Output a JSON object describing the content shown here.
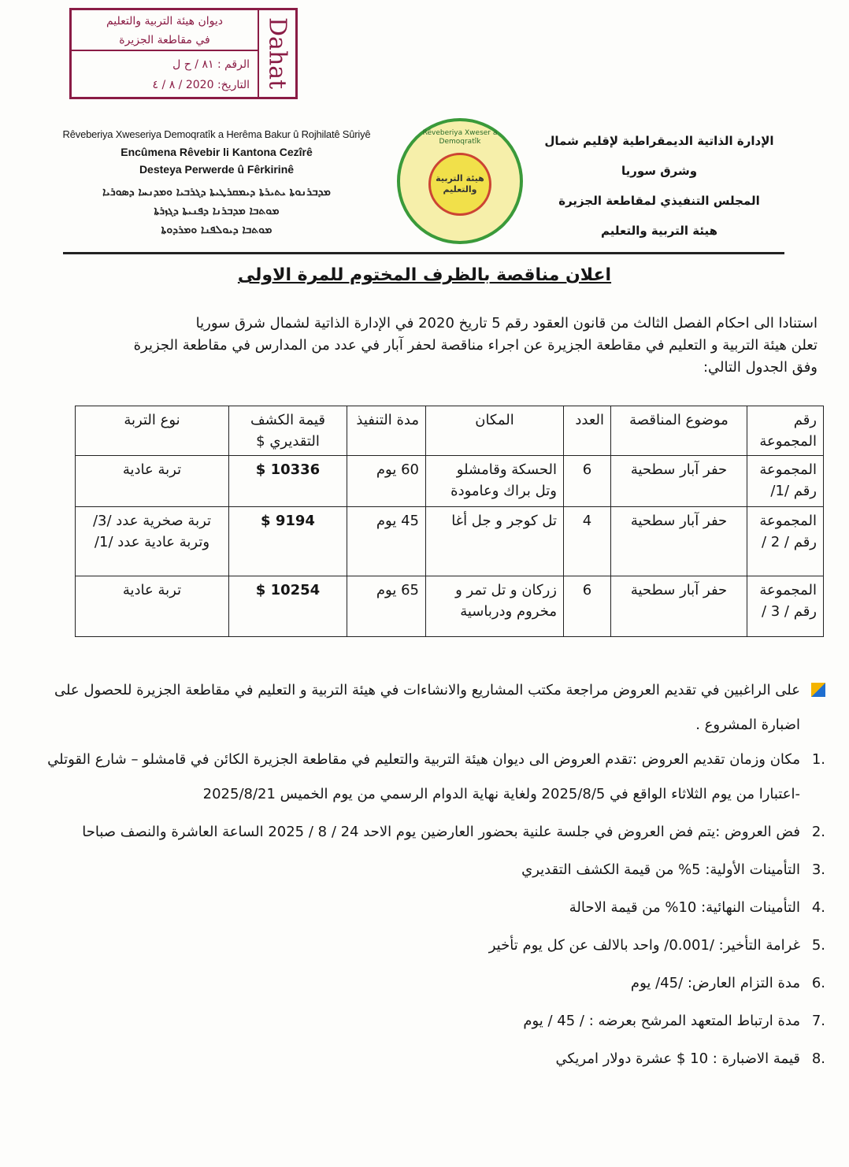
{
  "stamp": {
    "line1": "ديوان هيئة التربية والتعليم",
    "line2": "في مقاطعة الجزيرة",
    "number_label": "الرقم :",
    "number_value": "٨١ / ح ل",
    "date_label": "التاريخ:",
    "date_value": "2020 / ٨ / ٤",
    "side": "Dahat",
    "color": "#8a1c45"
  },
  "header_kurdish": [
    "Rêveberiya Xweseriya Demoqratîk a Herêma Bakur û Rojhilatê Sûriyê",
    "Encûmena Rêvebir li Kantona Cezîrê",
    "Desteya Perwerde û Fêrkirinê"
  ],
  "header_syriac": [
    "ܡܕܒܪܢܘܬܐ ܝܬܝܪܬܐ ܕܝܡܩܪܛܝܬܐ ܕܓܪܒܝܐ ܘܡܕܢܚܐ ܕܣܘܪܝܐ",
    "ܡܘܬܒܐ ܡܕܒܪܢܐ ܕܦܢܝܬܐ ܕܓܙܪܬܐ",
    "ܡܘܬܒܐ ܕܝܘܠܦܢܐ ܘܡܪܕܘܬܐ"
  ],
  "logo": {
    "ring": "Rêveberiya Xweser a Demoqratîk",
    "center": "هيئة التربية والتعليم"
  },
  "header_arabic": [
    "الإدارة الذاتية الديمقراطية لإقليم شمال وشرق سوريا",
    "المجلس التنفيذي لمقاطعة الجزيرة",
    "هيئة التربية والتعليم"
  ],
  "title": "اعلان مناقصة بالظرف المختوم للمرة الاولى",
  "intro": [
    "استنادا الى احكام الفصل الثالث من قانون العقود رقم 5 تاريخ 2020 في الإدارة الذاتية لشمال شرق سوريا",
    "تعلن هيئة التربية و التعليم في مقاطعة الجزيرة عن اجراء مناقصة لحفر آبار في عدد من المدارس في مقاطعة الجزيرة",
    "وفق الجدول التالي:"
  ],
  "table": {
    "headers": [
      "رقم المجموعة",
      "موضوع المناقصة",
      "العدد",
      "المكان",
      "مدة التنفيذ",
      "قيمة الكشف التقديري $",
      "نوع التربة"
    ],
    "rows": [
      [
        "المجموعة رقم /1/",
        "حفر آبار سطحية",
        "6",
        "الحسكة وقامشلو وتل براك وعامودة",
        "60 يوم",
        "$ 10336",
        "تربة عادية"
      ],
      [
        "المجموعة رقم / 2 /",
        "حفر آبار سطحية",
        "4",
        "تل كوجر و جل أغا",
        "45 يوم",
        "$ 9194",
        "تربة صخرية عدد /3/ وتربة عادية عدد /1/"
      ],
      [
        "المجموعة رقم / 3 /",
        "حفر آبار سطحية",
        "6",
        "زركان و تل تمر و مخروم ودرباسية",
        "65 يوم",
        "$ 10254",
        "تربة عادية"
      ]
    ]
  },
  "bullet": "على الراغبين في تقديم العروض مراجعة مكتب المشاريع والانشاءات في هيئة التربية و التعليم في مقاطعة الجزيرة للحصول على اضبارة المشروع .",
  "items": [
    {
      "n": ".1",
      "text": "مكان وزمان تقديم العروض :تقدم العروض الى ديوان هيئة التربية والتعليم في مقاطعة الجزيرة الكائن في قامشلو – شارع القوتلي -اعتبارا من يوم الثلاثاء الواقع في 2025/8/5 ولغاية نهاية الدوام الرسمي من يوم الخميس 2025/8/21"
    },
    {
      "n": ".2",
      "text": "فض العروض :يتم فض العروض في جلسة علنية بحضور العارضين يوم الاحد 24 / 8 / 2025 الساعة العاشرة والنصف صباحا"
    },
    {
      "n": ".3",
      "text": "التأمينات الأولية: 5% من قيمة الكشف التقديري"
    },
    {
      "n": ".4",
      "text": "التأمينات النهائية: 10% من قيمة الاحالة"
    },
    {
      "n": ".5",
      "text": "غرامة التأخير: /0.001/ واحد بالالف عن كل يوم تأخير"
    },
    {
      "n": ".6",
      "text": "مدة التزام العارض: /45/ يوم"
    },
    {
      "n": ".7",
      "text": "مدة ارتباط المتعهد المرشح بعرضه : / 45 / يوم"
    },
    {
      "n": ".8",
      "text": "قيمة الاضبارة : 10 $ عشرة دولار امريكي"
    }
  ]
}
